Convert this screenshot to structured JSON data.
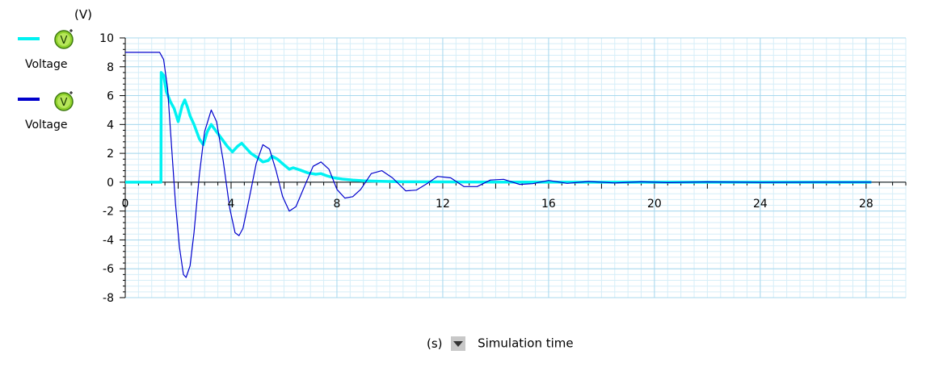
{
  "legend": {
    "items": [
      {
        "label": "Voltage",
        "color": "#00f2f2",
        "icon": "voltmeter-icon"
      },
      {
        "label": "Voltage",
        "color": "#0000cc",
        "icon": "voltmeter-icon"
      }
    ]
  },
  "x_axis_control": {
    "unit": "(s)",
    "label": "Simulation time",
    "dropdown_icon": "dropdown-arrow-icon"
  },
  "chart_data": {
    "type": "line",
    "ylabel": "(V)",
    "xlabel": "(s)",
    "xlim": [
      0,
      29.5
    ],
    "ylim": [
      -8,
      10
    ],
    "x_ticks": [
      0,
      4,
      8,
      12,
      16,
      20,
      24,
      28
    ],
    "y_ticks": [
      -8,
      -6,
      -4,
      -2,
      0,
      2,
      4,
      6,
      8,
      10
    ],
    "grid": true,
    "legend_position": "left",
    "series": [
      {
        "color": "#00f2f2",
        "x": [
          0,
          1.35,
          1.36,
          1.45,
          1.55,
          1.7,
          1.85,
          2.0,
          2.15,
          2.25,
          2.35,
          2.45,
          2.6,
          2.8,
          2.95,
          3.1,
          3.25,
          3.45,
          3.65,
          3.85,
          4.05,
          4.25,
          4.4,
          4.55,
          4.75,
          5.0,
          5.2,
          5.4,
          5.55,
          5.75,
          6.0,
          6.2,
          6.35,
          6.6,
          6.9,
          7.2,
          7.4,
          7.6,
          7.9,
          8.2,
          8.6,
          9.0,
          9.6,
          10.5,
          12,
          14,
          18,
          22,
          28.2
        ],
        "y": [
          0,
          0,
          7.6,
          7.4,
          6.3,
          5.6,
          5.1,
          4.2,
          5.3,
          5.7,
          5.2,
          4.6,
          4.0,
          3.0,
          2.6,
          3.5,
          4.0,
          3.5,
          3.0,
          2.5,
          2.1,
          2.5,
          2.7,
          2.4,
          2.0,
          1.7,
          1.4,
          1.5,
          1.8,
          1.6,
          1.2,
          0.9,
          1.0,
          0.85,
          0.65,
          0.55,
          0.6,
          0.45,
          0.3,
          0.22,
          0.15,
          0.1,
          0.06,
          0.03,
          0.02,
          0.01,
          0.0,
          0.0,
          0.0
        ]
      },
      {
        "color": "#0000cc",
        "x": [
          0,
          1.3,
          1.45,
          1.6,
          1.75,
          1.9,
          2.05,
          2.2,
          2.3,
          2.45,
          2.6,
          2.8,
          3.0,
          3.25,
          3.45,
          3.7,
          3.95,
          4.15,
          4.3,
          4.45,
          4.7,
          4.95,
          5.2,
          5.45,
          5.7,
          5.95,
          6.2,
          6.45,
          6.75,
          7.1,
          7.4,
          7.7,
          8.0,
          8.3,
          8.6,
          8.9,
          9.3,
          9.7,
          10.1,
          10.6,
          11.0,
          11.4,
          11.8,
          12.3,
          12.8,
          13.3,
          13.8,
          14.3,
          14.9,
          15.4,
          16.0,
          16.7,
          17.5,
          18.5,
          19.5,
          20.5,
          22,
          24,
          26,
          28.2
        ],
        "y": [
          9.0,
          9.0,
          8.5,
          6.5,
          2.5,
          -1.5,
          -4.5,
          -6.4,
          -6.6,
          -5.8,
          -3.5,
          0.5,
          3.5,
          5.0,
          4.2,
          1.5,
          -1.8,
          -3.5,
          -3.7,
          -3.2,
          -1.0,
          1.3,
          2.6,
          2.3,
          0.8,
          -1.0,
          -2.0,
          -1.7,
          -0.4,
          1.1,
          1.4,
          0.9,
          -0.5,
          -1.1,
          -1.0,
          -0.5,
          0.6,
          0.8,
          0.3,
          -0.6,
          -0.55,
          -0.1,
          0.4,
          0.3,
          -0.3,
          -0.3,
          0.15,
          0.2,
          -0.15,
          -0.1,
          0.12,
          -0.08,
          0.05,
          -0.05,
          0.03,
          -0.03,
          0.02,
          -0.01,
          0.0,
          0.0
        ]
      }
    ]
  }
}
